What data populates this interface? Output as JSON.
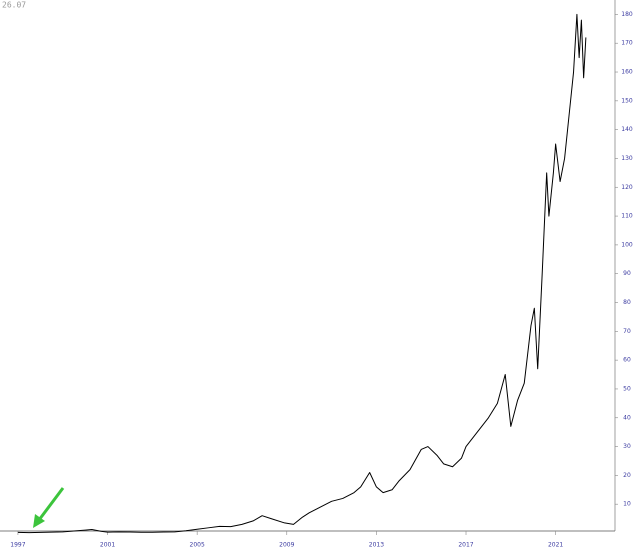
{
  "chart_data": {
    "type": "line",
    "annotation": "26.07",
    "x": [
      1997,
      1997.5,
      1998,
      1998.5,
      1999,
      1999.5,
      2000,
      2000.3,
      2000.7,
      2001,
      2001.5,
      2002,
      2002.5,
      2003,
      2003.5,
      2004,
      2004.5,
      2005,
      2005.5,
      2006,
      2006.5,
      2007,
      2007.5,
      2007.9,
      2008.3,
      2008.9,
      2009.3,
      2009.7,
      2010,
      2010.5,
      2011,
      2011.5,
      2012,
      2012.3,
      2012.7,
      2013,
      2013.3,
      2013.7,
      2014,
      2014.5,
      2015,
      2015.3,
      2015.7,
      2016,
      2016.4,
      2016.8,
      2017,
      2017.5,
      2018,
      2018.4,
      2018.75,
      2019.0,
      2019.3,
      2019.6,
      2019.9,
      2020.05,
      2020.2,
      2020.4,
      2020.6,
      2020.7,
      2020.9,
      2021.0,
      2021.2,
      2021.4,
      2021.6,
      2021.8,
      2021.95,
      2022.05,
      2022.15,
      2022.25,
      2022.35
    ],
    "series": [
      {
        "color": "#000000",
        "values": [
          0.2,
          0.15,
          0.2,
          0.3,
          0.4,
          0.7,
          1.0,
          1.2,
          0.6,
          0.3,
          0.4,
          0.35,
          0.25,
          0.25,
          0.35,
          0.4,
          0.8,
          1.3,
          1.8,
          2.3,
          2.2,
          3,
          4.2,
          6,
          5,
          3.5,
          3,
          5.5,
          7,
          9,
          11,
          12,
          14,
          16,
          21,
          16,
          14,
          15,
          18,
          22,
          29,
          30,
          27,
          24,
          23,
          26,
          30,
          35,
          40,
          45,
          55,
          37,
          46,
          52,
          72,
          78,
          57,
          90,
          125,
          110,
          125,
          135,
          122,
          130,
          145,
          160,
          180,
          165,
          178,
          158,
          172
        ]
      }
    ],
    "xlim": [
      1996.2,
      2023.65
    ],
    "xticks": [
      1997,
      2001,
      2005,
      2009,
      2013,
      2017,
      2021
    ],
    "ylim": [
      0,
      185
    ],
    "yticks": [
      10,
      20,
      30,
      40,
      50,
      60,
      70,
      80,
      90,
      100,
      110,
      120,
      130,
      140,
      150,
      160,
      170,
      180
    ]
  }
}
